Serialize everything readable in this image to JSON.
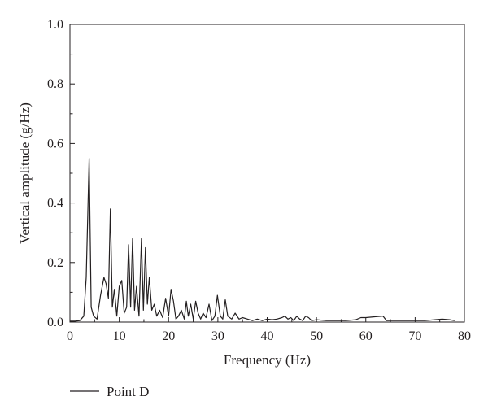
{
  "chart_data": {
    "type": "line",
    "title": "",
    "xlabel": "Frequency (Hz)",
    "ylabel": "Vertical amplitude (g/Hz)",
    "xlim": [
      0,
      80
    ],
    "ylim": [
      0,
      1.0
    ],
    "xticks": [
      "0",
      "10",
      "20",
      "30",
      "40",
      "50",
      "60",
      "70",
      "80"
    ],
    "yticks": [
      "0.0",
      "0.2",
      "0.4",
      "0.6",
      "0.8",
      "1.0"
    ],
    "grid": false,
    "legend": "bottom-left",
    "series": [
      {
        "name": "Point D",
        "color": "#231f20",
        "x": [
          0,
          1,
          2,
          2.8,
          3.3,
          3.9,
          4.3,
          4.8,
          5.5,
          6.2,
          6.9,
          7.3,
          7.8,
          8.2,
          8.6,
          9.0,
          9.5,
          10.0,
          10.5,
          11.0,
          11.5,
          11.9,
          12.3,
          12.7,
          13.1,
          13.5,
          14.0,
          14.5,
          14.9,
          15.3,
          15.7,
          16.1,
          16.6,
          17.1,
          17.6,
          18.2,
          18.8,
          19.4,
          20.0,
          20.5,
          21.0,
          21.5,
          22.0,
          22.6,
          23.2,
          23.6,
          24.0,
          24.5,
          25.0,
          25.5,
          26.0,
          26.5,
          27.0,
          27.6,
          28.2,
          28.8,
          29.4,
          29.9,
          30.5,
          31.0,
          31.5,
          32.0,
          32.8,
          33.5,
          34.3,
          35.0,
          36.0,
          37.0,
          38.0,
          39.0,
          40.0,
          41.0,
          42.0,
          43.0,
          43.6,
          44.2,
          44.8,
          45.4,
          46.0,
          46.6,
          47.2,
          47.8,
          48.4,
          49.0,
          50.0,
          52.0,
          54.0,
          56.0,
          58.0,
          59.0,
          60.0,
          62.0,
          63.5,
          64.2,
          64.8,
          66.0,
          68.0,
          70.0,
          72.0,
          74.0,
          75.5,
          77.0,
          78.0
        ],
        "values": [
          0.003,
          0.003,
          0.005,
          0.02,
          0.15,
          0.55,
          0.05,
          0.02,
          0.01,
          0.09,
          0.15,
          0.13,
          0.08,
          0.38,
          0.05,
          0.11,
          0.02,
          0.12,
          0.14,
          0.03,
          0.05,
          0.26,
          0.05,
          0.28,
          0.04,
          0.12,
          0.02,
          0.28,
          0.04,
          0.25,
          0.06,
          0.15,
          0.04,
          0.06,
          0.02,
          0.04,
          0.015,
          0.08,
          0.02,
          0.11,
          0.07,
          0.01,
          0.02,
          0.04,
          0.01,
          0.07,
          0.02,
          0.06,
          0.01,
          0.07,
          0.03,
          0.01,
          0.03,
          0.015,
          0.06,
          0.005,
          0.02,
          0.09,
          0.02,
          0.01,
          0.075,
          0.02,
          0.01,
          0.03,
          0.01,
          0.015,
          0.01,
          0.005,
          0.01,
          0.005,
          0.01,
          0.008,
          0.01,
          0.015,
          0.02,
          0.01,
          0.015,
          0.005,
          0.02,
          0.01,
          0.005,
          0.02,
          0.015,
          0.005,
          0.008,
          0.005,
          0.005,
          0.005,
          0.008,
          0.015,
          0.015,
          0.018,
          0.02,
          0.005,
          0.005,
          0.005,
          0.005,
          0.005,
          0.005,
          0.008,
          0.01,
          0.008,
          0.005
        ]
      }
    ]
  }
}
